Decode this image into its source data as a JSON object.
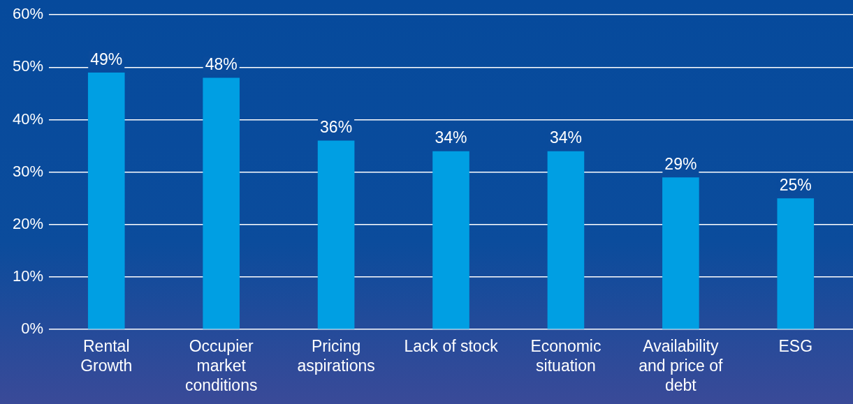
{
  "chart_data": {
    "type": "bar",
    "categories": [
      "Rental Growth",
      "Occupier market conditions",
      "Pricing aspirations",
      "Lack of stock",
      "Economic situation",
      "Availability and price of debt",
      "ESG"
    ],
    "values": [
      49,
      48,
      36,
      34,
      34,
      29,
      25
    ],
    "value_labels": [
      "49%",
      "48%",
      "36%",
      "34%",
      "34%",
      "29%",
      "25%"
    ],
    "color": "#009fe3",
    "ylim": [
      0,
      60
    ],
    "yticks": [
      {
        "value": 0,
        "label": "0%"
      },
      {
        "value": 10,
        "label": "10%"
      },
      {
        "value": 20,
        "label": "20%"
      },
      {
        "value": 30,
        "label": "30%"
      },
      {
        "value": 40,
        "label": "40%"
      },
      {
        "value": 50,
        "label": "50%"
      },
      {
        "value": 60,
        "label": "60%"
      }
    ],
    "grid": "y",
    "legend": false
  }
}
